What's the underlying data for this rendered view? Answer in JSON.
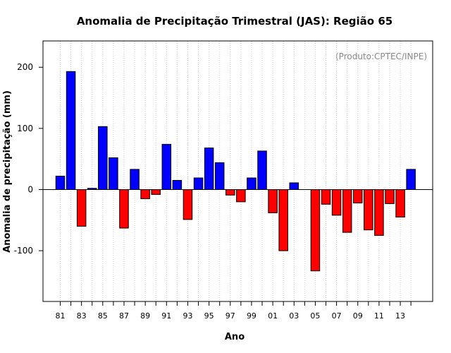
{
  "chart_data": {
    "type": "bar",
    "title": "Anomalia de Precipitação Trimestral (JAS): Região 65",
    "xlabel": "Ano",
    "ylabel": "Anomalia de precipitação (mm)",
    "credit": "(Produto:CPTEC/INPE)",
    "ylim": [
      -183,
      243
    ],
    "yticks": [
      -100,
      0,
      100,
      200
    ],
    "ytick_labels": [
      "-100",
      "0",
      "100",
      "200"
    ],
    "xticks_labels": [
      "81",
      "83",
      "85",
      "87",
      "89",
      "91",
      "93",
      "95",
      "97",
      "99",
      "01",
      "03",
      "05",
      "07",
      "09",
      "11",
      "13"
    ],
    "categories": [
      "1981",
      "1982",
      "1983",
      "1984",
      "1985",
      "1986",
      "1987",
      "1988",
      "1989",
      "1990",
      "1991",
      "1992",
      "1993",
      "1994",
      "1995",
      "1996",
      "1997",
      "1998",
      "1999",
      "2000",
      "2001",
      "2002",
      "2003",
      "2004",
      "2005",
      "2006",
      "2007",
      "2008",
      "2009",
      "2010",
      "2011",
      "2012",
      "2013",
      "2014"
    ],
    "values": [
      22,
      193,
      -60,
      2,
      103,
      52,
      -63,
      33,
      -15,
      -8,
      74,
      15,
      -49,
      19,
      68,
      44,
      -9,
      -20,
      19,
      63,
      -38,
      -100,
      11,
      0,
      -133,
      -24,
      -42,
      -70,
      -22,
      -66,
      -75,
      -23,
      -45,
      33
    ],
    "colors": {
      "positive": "#0000ff",
      "negative": "#ff0000",
      "grid": "#c8c8c8",
      "zero_line": "#000000"
    },
    "grid": true
  }
}
